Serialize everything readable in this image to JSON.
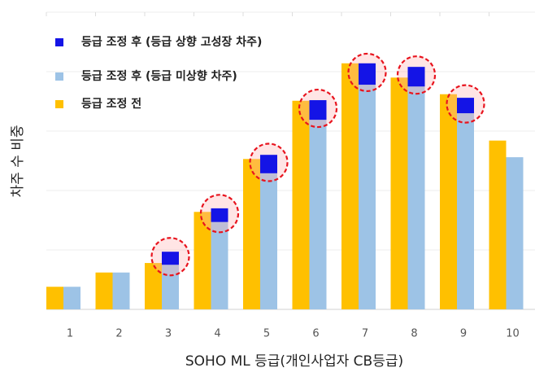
{
  "chart_data": {
    "type": "bar",
    "x_label": "SOHO ML 등급(개인사업자 CB등급)",
    "y_label": "차주 수 비중",
    "categories": [
      "1",
      "2",
      "3",
      "4",
      "5",
      "6",
      "7",
      "8",
      "9",
      "10"
    ],
    "series": [
      {
        "name": "등급 조정 후 (등급 상향 고성장 차주)",
        "color": "#1414e6",
        "values": [
          0,
          0,
          0.22,
          0.23,
          0.31,
          0.33,
          0.36,
          0.33,
          0.26,
          0
        ]
      },
      {
        "name": "등급 조정 후 (등급 미상향 차주)",
        "color": "#9dc3e6",
        "values": [
          0.38,
          0.62,
          0.75,
          1.47,
          2.29,
          3.19,
          3.78,
          3.75,
          3.3,
          2.56
        ]
      },
      {
        "name": "등급 조정 전",
        "color": "#ffc000",
        "values": [
          0.38,
          0.62,
          0.78,
          1.64,
          2.53,
          3.51,
          4.14,
          3.9,
          3.62,
          2.84
        ]
      }
    ],
    "ylim": [
      0,
      5
    ],
    "yticks": [
      0,
      1,
      2,
      3,
      4,
      5
    ],
    "grid": true,
    "legend": "upper left"
  }
}
